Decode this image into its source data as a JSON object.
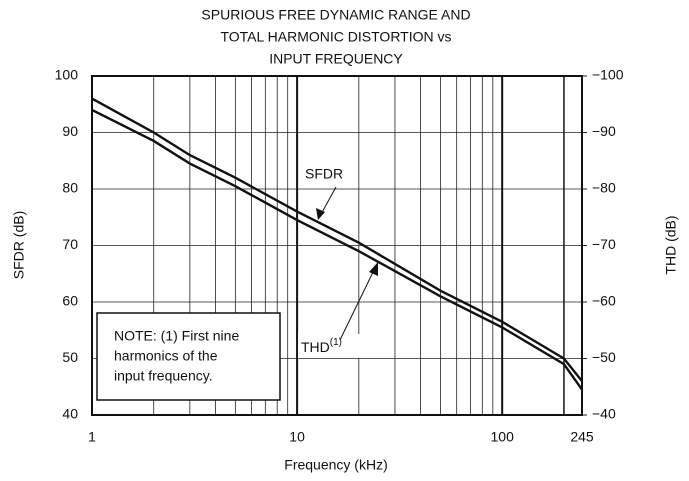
{
  "chart_data": {
    "type": "line",
    "title": [
      "SPURIOUS FREE DYNAMIC RANGE AND",
      "TOTAL HARMONIC DISTORTION vs",
      "INPUT FREQUENCY"
    ],
    "xlabel": "Frequency (kHz)",
    "ylabel": "SFDR (dB)",
    "y2label": "THD (dB)",
    "xscale": "log",
    "grid": true,
    "x": [
      1,
      2,
      3,
      5,
      10,
      20,
      50,
      100,
      200,
      245
    ],
    "series": [
      {
        "name": "SFDR",
        "color": "#111111",
        "values": [
          96,
          90,
          86,
          82,
          76,
          70.5,
          62,
          56.5,
          50,
          46
        ]
      },
      {
        "name": "THD",
        "color": "#111111",
        "axis": "y2",
        "values": [
          -94,
          -88.5,
          -84.5,
          -80.5,
          -74.5,
          -69,
          -61,
          -55.5,
          -49,
          -44.5
        ]
      }
    ],
    "xlim": [
      1,
      245
    ],
    "xticks": [
      1,
      10,
      100,
      245
    ],
    "ylim": [
      40,
      100
    ],
    "yticks": [
      40,
      50,
      60,
      70,
      80,
      90,
      100
    ],
    "y2lim": [
      -40,
      -100
    ],
    "y2ticks": [
      {
        "value": -40,
        "label": "−40"
      },
      {
        "value": -50,
        "label": "−50"
      },
      {
        "value": -60,
        "label": "−60"
      },
      {
        "value": -70,
        "label": "−70"
      },
      {
        "value": -80,
        "label": "−80"
      },
      {
        "value": -90,
        "label": "−90"
      },
      {
        "value": -100,
        "label": "−100"
      }
    ],
    "annotations": [
      {
        "text": "SFDR"
      },
      {
        "text": "THD",
        "superscript": "(1)"
      }
    ],
    "note": [
      "NOTE: (1) First nine",
      "harmonics of the",
      "input frequency."
    ]
  }
}
